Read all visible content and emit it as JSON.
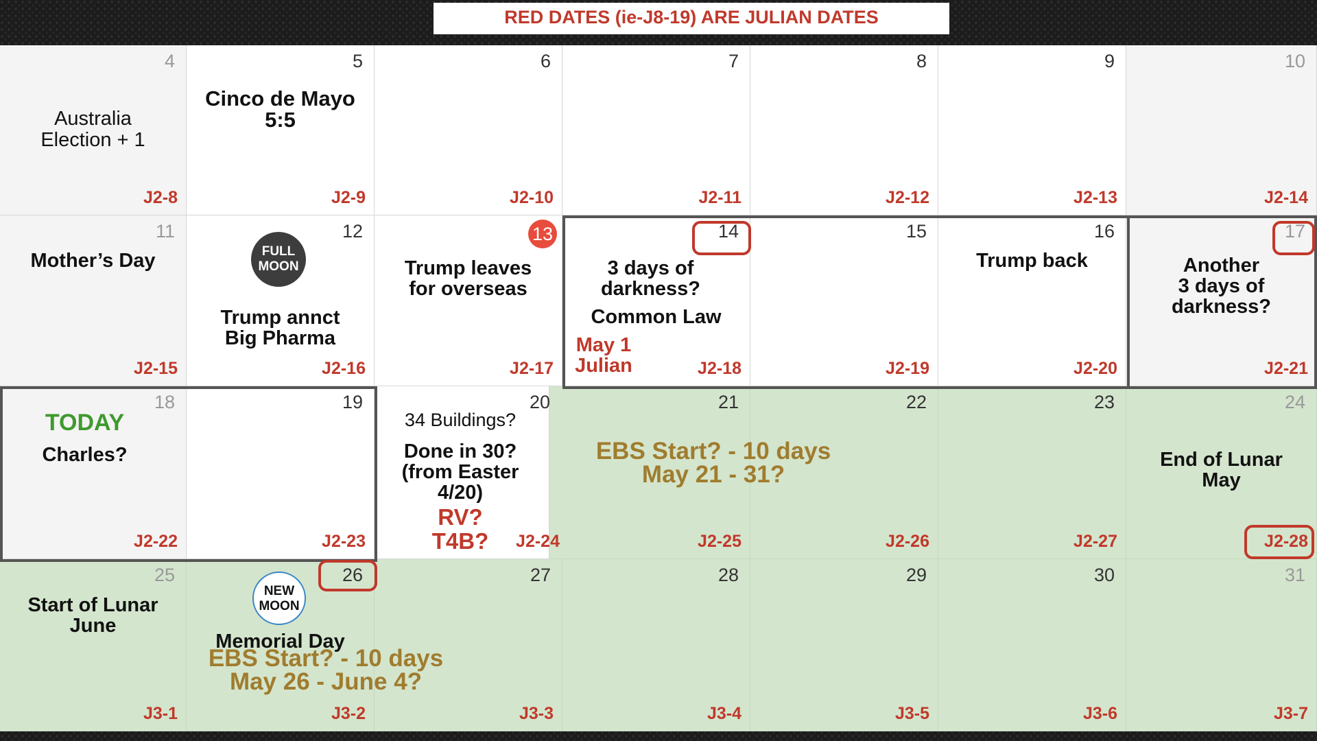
{
  "banner": "RED DATES (ie-J8-19) ARE JULIAN DATES",
  "days": {
    "d4": {
      "num": "4",
      "julian": "J2-8"
    },
    "d5": {
      "num": "5",
      "julian": "J2-9"
    },
    "d6": {
      "num": "6",
      "julian": "J2-10"
    },
    "d7": {
      "num": "7",
      "julian": "J2-11"
    },
    "d8": {
      "num": "8",
      "julian": "J2-12"
    },
    "d9": {
      "num": "9",
      "julian": "J2-13"
    },
    "d10": {
      "num": "10",
      "julian": "J2-14"
    },
    "d11": {
      "num": "11",
      "julian": "J2-15"
    },
    "d12": {
      "num": "12",
      "julian": "J2-16"
    },
    "d13": {
      "num": "13",
      "julian": "J2-17"
    },
    "d14": {
      "num": "14",
      "julian": "J2-18"
    },
    "d15": {
      "num": "15",
      "julian": "J2-19"
    },
    "d16": {
      "num": "16",
      "julian": "J2-20"
    },
    "d17": {
      "num": "17",
      "julian": "J2-21"
    },
    "d18": {
      "num": "18",
      "julian": "J2-22"
    },
    "d19": {
      "num": "19",
      "julian": "J2-23"
    },
    "d20": {
      "num": "20",
      "julian": "J2-24"
    },
    "d21": {
      "num": "21",
      "julian": "J2-25"
    },
    "d22": {
      "num": "22",
      "julian": "J2-26"
    },
    "d23": {
      "num": "23",
      "julian": "J2-27"
    },
    "d24": {
      "num": "24",
      "julian": "J2-28"
    },
    "d25": {
      "num": "25",
      "julian": "J3-1"
    },
    "d26": {
      "num": "26",
      "julian": "J3-2"
    },
    "d27": {
      "num": "27",
      "julian": "J3-3"
    },
    "d28": {
      "num": "28",
      "julian": "J3-4"
    },
    "d29": {
      "num": "29",
      "julian": "J3-5"
    },
    "d30": {
      "num": "30",
      "julian": "J3-6"
    },
    "d31": {
      "num": "31",
      "julian": "J3-7"
    }
  },
  "events": {
    "australia_1": "Australia",
    "australia_2": "Election + 1",
    "cinco_1": "Cinco de Mayo",
    "cinco_2": "5:5",
    "mothers_day": "Mother’s Day",
    "full_moon_1": "FULL",
    "full_moon_2": "MOON",
    "pharma_1": "Trump annct",
    "pharma_2": "Big Pharma",
    "overseas_1": "Trump leaves",
    "overseas_2": "for overseas",
    "darkness_1": "3 days of",
    "darkness_2": "darkness?",
    "common_law": "Common Law",
    "may1_1": "May 1",
    "may1_2": "Julian",
    "trump_back": "Trump back",
    "another_1": "Another",
    "another_2": "3 days of",
    "another_3": "darkness?",
    "today": "TODAY",
    "charles": "Charles?",
    "buildings": "34 Buildings?",
    "done_1": "Done in 30?",
    "done_2": "(from Easter",
    "done_3": "4/20)",
    "rv": "RV?",
    "t4b": "T4B?",
    "ebs1_1": "EBS Start? - 10 days",
    "ebs1_2": "May 21 - 31?",
    "lunar_may_1": "End of Lunar",
    "lunar_may_2": "May",
    "lunar_june_1": "Start of Lunar",
    "lunar_june_2": "June",
    "new_moon_1": "NEW",
    "new_moon_2": "MOON",
    "memorial": "Memorial Day",
    "ebs2_1": "EBS Start? - 10 days",
    "ebs2_2": "May 26 - June 4?"
  }
}
